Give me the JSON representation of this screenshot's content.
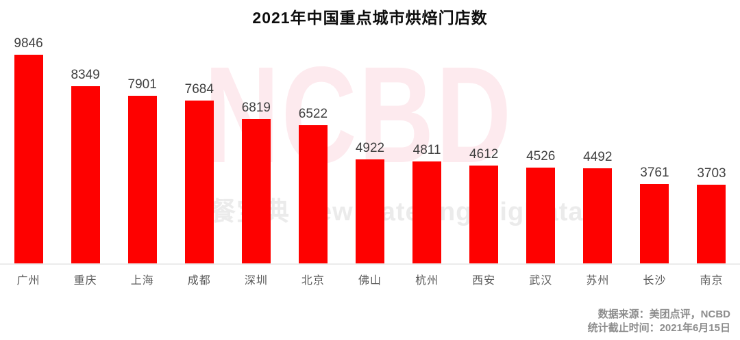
{
  "title": "2021年中国重点城市烘焙门店数",
  "watermark": {
    "logo": "NCBD",
    "subtitle": "餐宝典 New Catering BigData"
  },
  "footer": {
    "source_line": "数据来源：美团点评，NCBD",
    "cutoff_line": "统计截止时间：2021年6月15日"
  },
  "colors": {
    "bar": "#fe0100",
    "title_text": "#0d0d0d",
    "value_label": "#404040",
    "category_label": "#595959",
    "footer_text": "#8c8c8c",
    "watermark_pink": "#fdeaee",
    "watermark_gray": "#ebebeb",
    "axis_line": "#ebebeb"
  },
  "chart_data": {
    "type": "bar",
    "title": "2021年中国重点城市烘焙门店数",
    "categories": [
      "广州",
      "重庆",
      "上海",
      "成都",
      "深圳",
      "北京",
      "佛山",
      "杭州",
      "西安",
      "武汉",
      "苏州",
      "长沙",
      "南京"
    ],
    "values": [
      9846,
      8349,
      7901,
      7684,
      6819,
      6522,
      4922,
      4811,
      4612,
      4526,
      4492,
      3761,
      3703
    ],
    "xlabel": "",
    "ylabel": "",
    "ylim": [
      0,
      10000
    ],
    "grid": false,
    "legend": null,
    "data_labels": true,
    "bar_color": "#fe0100",
    "orientation": "vertical"
  }
}
